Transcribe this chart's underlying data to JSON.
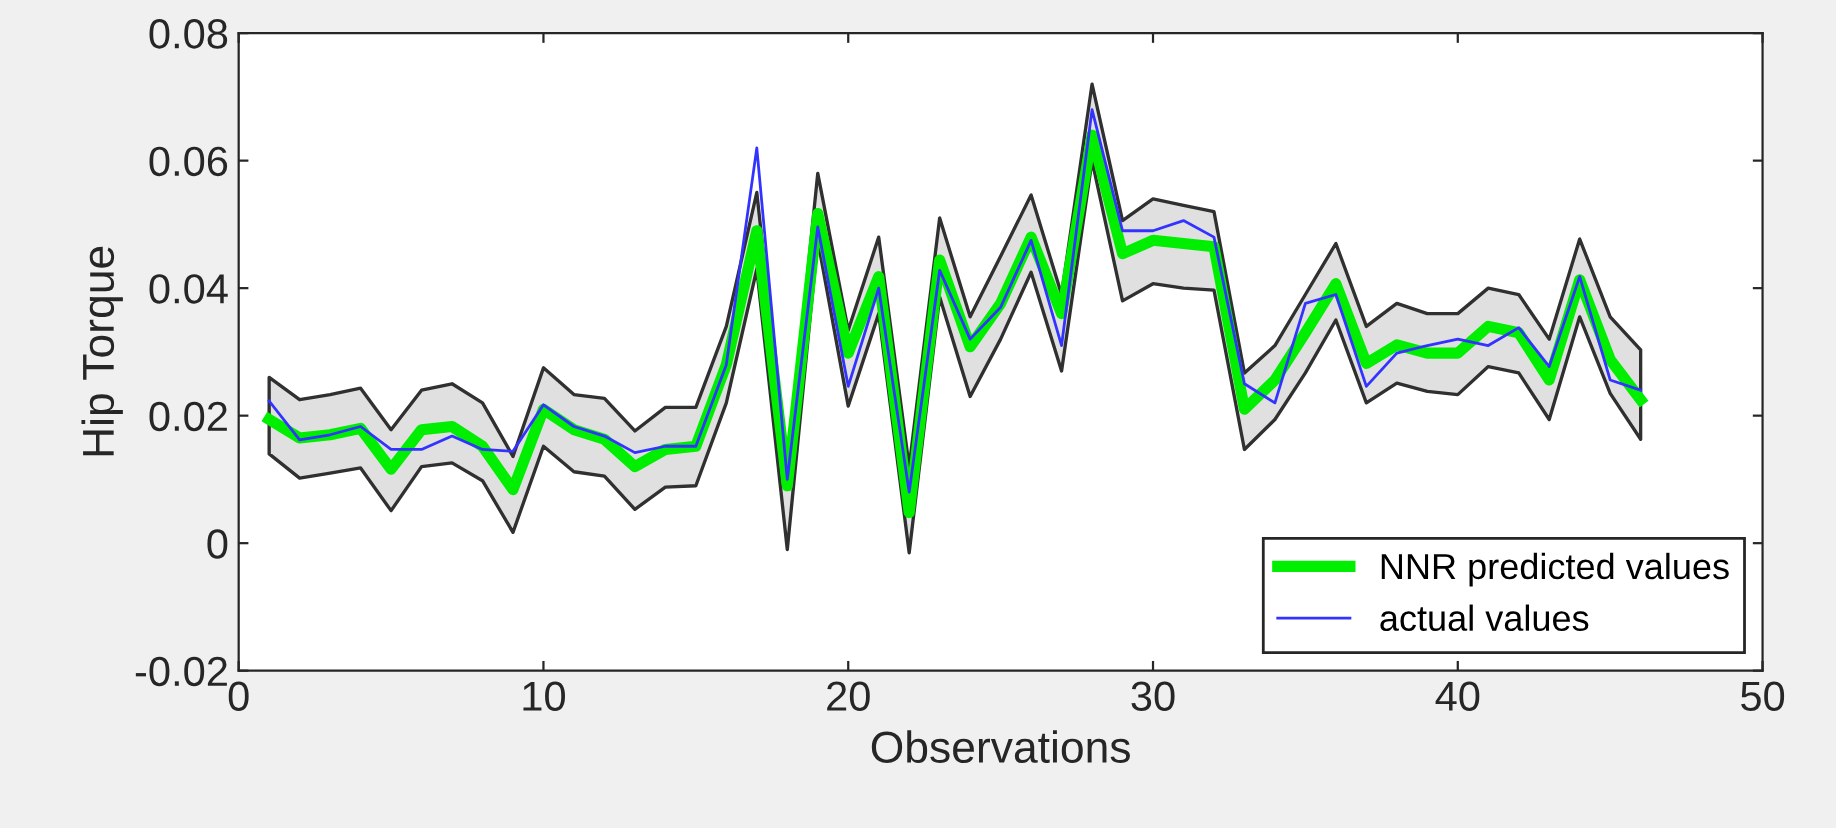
{
  "chart_data": {
    "type": "line",
    "xlabel": "Observations",
    "ylabel": "Hip Torque",
    "x": [
      1,
      2,
      3,
      4,
      5,
      6,
      7,
      8,
      9,
      10,
      11,
      12,
      13,
      14,
      15,
      16,
      17,
      18,
      19,
      20,
      21,
      22,
      23,
      24,
      25,
      26,
      27,
      28,
      29,
      30,
      31,
      32,
      33,
      34,
      35,
      36,
      37,
      38,
      39,
      40,
      41,
      42,
      43,
      44,
      45,
      46
    ],
    "series": [
      {
        "name": "NNR predicted values",
        "color": "#00ee00",
        "values": [
          0.0194,
          0.0165,
          0.017,
          0.018,
          0.0116,
          0.0178,
          0.0183,
          0.0152,
          0.0084,
          0.021,
          0.0178,
          0.0163,
          0.012,
          0.0147,
          0.0152,
          0.028,
          0.049,
          0.009,
          0.0517,
          0.0298,
          0.0418,
          0.0048,
          0.0444,
          0.0308,
          0.0376,
          0.048,
          0.036,
          0.064,
          0.0454,
          0.0475,
          0.047,
          0.0465,
          0.021,
          0.0256,
          0.033,
          0.0407,
          0.0282,
          0.0311,
          0.0298,
          0.0298,
          0.034,
          0.033,
          0.0256,
          0.0413,
          0.0288,
          0.0225
        ],
        "lower": [
          0.014,
          0.0102,
          0.011,
          0.0118,
          0.0051,
          0.012,
          0.0126,
          0.0098,
          0.0017,
          0.0152,
          0.0112,
          0.0105,
          0.0053,
          0.0088,
          0.009,
          0.022,
          0.043,
          -0.001,
          0.0475,
          0.0215,
          0.036,
          -0.0015,
          0.0386,
          0.023,
          0.032,
          0.0425,
          0.027,
          0.06,
          0.038,
          0.0407,
          0.04,
          0.0397,
          0.0147,
          0.0194,
          0.0267,
          0.035,
          0.022,
          0.0251,
          0.0238,
          0.0233,
          0.0277,
          0.0267,
          0.0194,
          0.0355,
          0.0235,
          0.0163
        ],
        "upper": [
          0.026,
          0.0225,
          0.0233,
          0.0243,
          0.0178,
          0.024,
          0.025,
          0.022,
          0.0136,
          0.0275,
          0.0233,
          0.0227,
          0.0176,
          0.0213,
          0.0213,
          0.034,
          0.055,
          0.011,
          0.058,
          0.0334,
          0.048,
          0.012,
          0.051,
          0.0355,
          0.045,
          0.0546,
          0.039,
          0.072,
          0.0506,
          0.054,
          0.053,
          0.052,
          0.0267,
          0.031,
          0.039,
          0.047,
          0.034,
          0.0376,
          0.036,
          0.036,
          0.04,
          0.039,
          0.032,
          0.0477,
          0.0355,
          0.0303
        ]
      },
      {
        "name": "actual values",
        "color": "#3333ff",
        "values": [
          0.0223,
          0.0162,
          0.017,
          0.0183,
          0.0147,
          0.0147,
          0.0168,
          0.0147,
          0.0144,
          0.0217,
          0.0183,
          0.0168,
          0.0142,
          0.0152,
          0.0152,
          0.028,
          0.062,
          0.01,
          0.0496,
          0.0246,
          0.04,
          0.008,
          0.0428,
          0.032,
          0.037,
          0.0475,
          0.031,
          0.068,
          0.049,
          0.049,
          0.0506,
          0.048,
          0.025,
          0.022,
          0.0376,
          0.039,
          0.0246,
          0.0298,
          0.031,
          0.032,
          0.031,
          0.0338,
          0.0277,
          0.0418,
          0.0256,
          0.024
        ]
      }
    ],
    "xlim": [
      0,
      50
    ],
    "xticks": [
      0,
      10,
      20,
      30,
      40,
      50
    ],
    "ylim": [
      -0.02,
      0.08
    ],
    "yticks": [
      -0.02,
      0,
      0.02,
      0.04,
      0.06,
      0.08
    ],
    "grid": false,
    "legend": "bottom right",
    "line_style": "solid",
    "marker": "none"
  }
}
